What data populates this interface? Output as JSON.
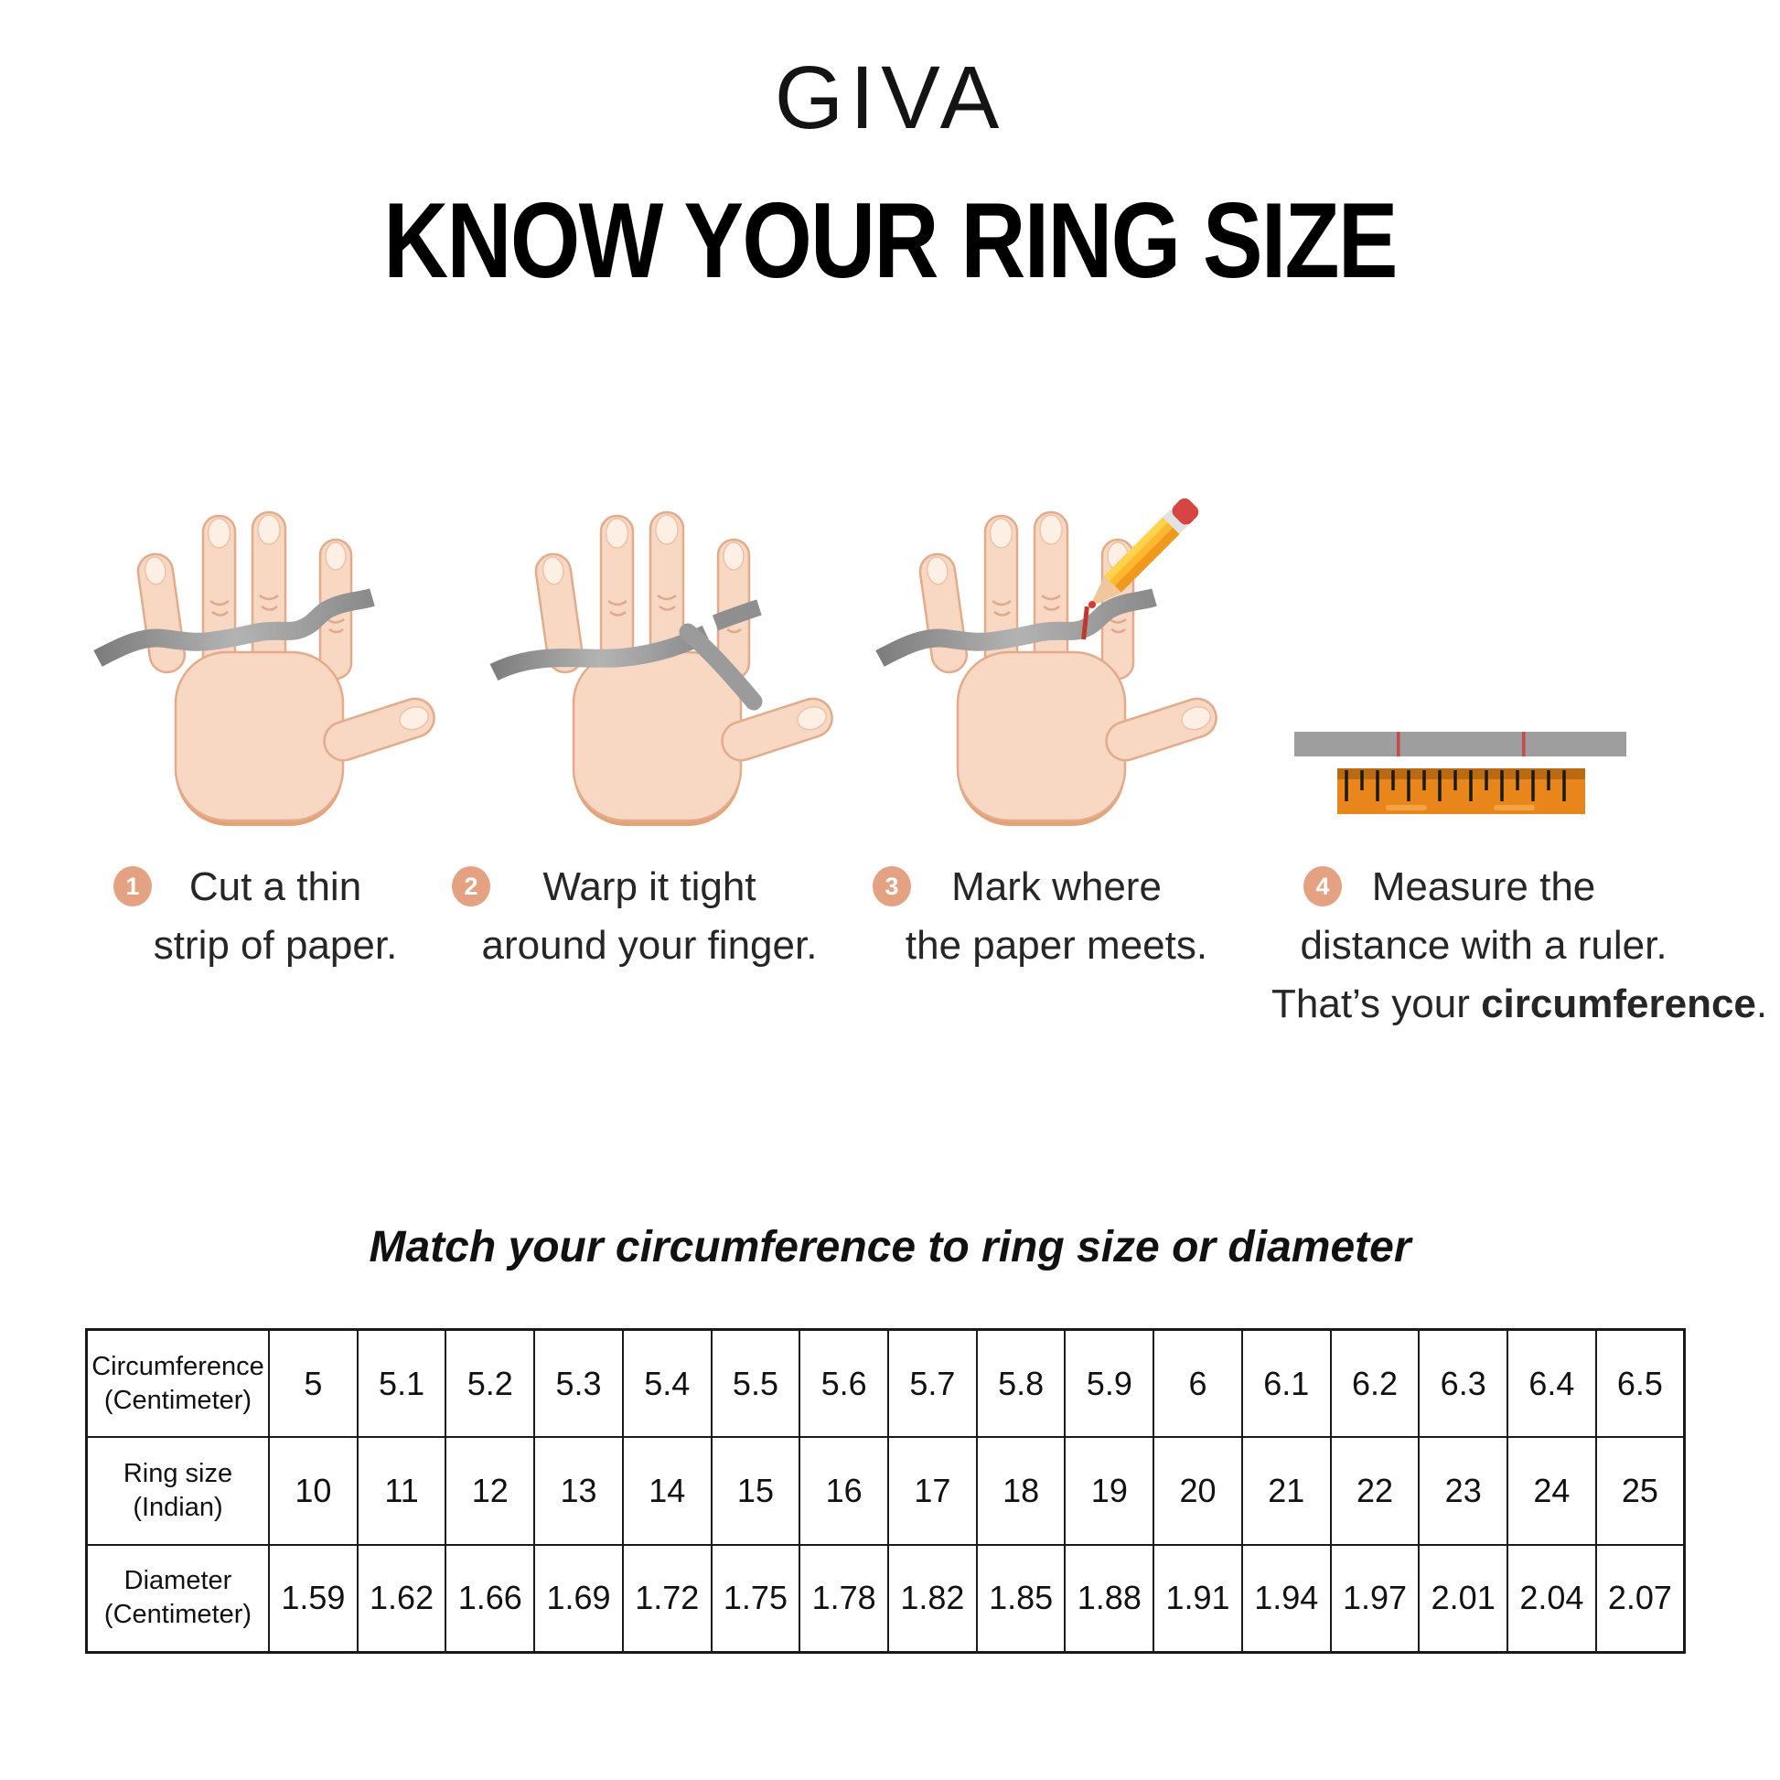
{
  "brand": {
    "logo_text": "GIVA"
  },
  "title": "KNOW YOUR RING SIZE",
  "steps": [
    {
      "number": "1",
      "line1": "Cut a thin",
      "line2": "strip of paper."
    },
    {
      "number": "2",
      "line1": "Warp it tight",
      "line2": "around your finger."
    },
    {
      "number": "3",
      "line1": "Mark where",
      "line2": "the paper meets."
    },
    {
      "number": "4",
      "line1": "Measure the",
      "line2": "distance with a ruler.",
      "line3_prefix": "That’s your ",
      "line3_bold": "circumference",
      "line3_suffix": "."
    }
  ],
  "illustrations": {
    "step1_icon": "hand-with-paper-strip-icon",
    "step2_icon": "hand-strip-wrapped-finger-icon",
    "step3_icon": "hand-pencil-marking-icon",
    "step4_icon": "ruler-measuring-strip-icon"
  },
  "match_heading": "Match your circumference to ring size or diameter",
  "table": {
    "rows": [
      {
        "label_line1": "Circumference",
        "label_line2": "(Centimeter)",
        "values": [
          "5",
          "5.1",
          "5.2",
          "5.3",
          "5.4",
          "5.5",
          "5.6",
          "5.7",
          "5.8",
          "5.9",
          "6",
          "6.1",
          "6.2",
          "6.3",
          "6.4",
          "6.5"
        ]
      },
      {
        "label_line1": "Ring size",
        "label_line2": "(Indian)",
        "values": [
          "10",
          "11",
          "12",
          "13",
          "14",
          "15",
          "16",
          "17",
          "18",
          "19",
          "20",
          "21",
          "22",
          "23",
          "24",
          "25"
        ]
      },
      {
        "label_line1": "Diameter",
        "label_line2": "(Centimeter)",
        "values": [
          "1.59",
          "1.62",
          "1.66",
          "1.69",
          "1.72",
          "1.75",
          "1.78",
          "1.82",
          "1.85",
          "1.88",
          "1.91",
          "1.94",
          "1.97",
          "2.01",
          "2.04",
          "2.07"
        ]
      }
    ]
  },
  "colors": {
    "badge_bg": "#e5a282",
    "skin": "#f8d7c3",
    "skin_outline": "#e2ac8c",
    "skin_shadow": "#e3a377",
    "nail": "#fdefe4",
    "strip_gray": "#9b9b9b",
    "paper_gray": "#9e9e9e",
    "mark_red": "#c0392b",
    "ruler_orange": "#e8861c",
    "ruler_top_band": "#ba6a10",
    "pencil_yellow": "#ffb92e",
    "pencil_eraser_red": "#d64540",
    "text": "#1e1e1e",
    "table_border": "#1a1a1a"
  }
}
